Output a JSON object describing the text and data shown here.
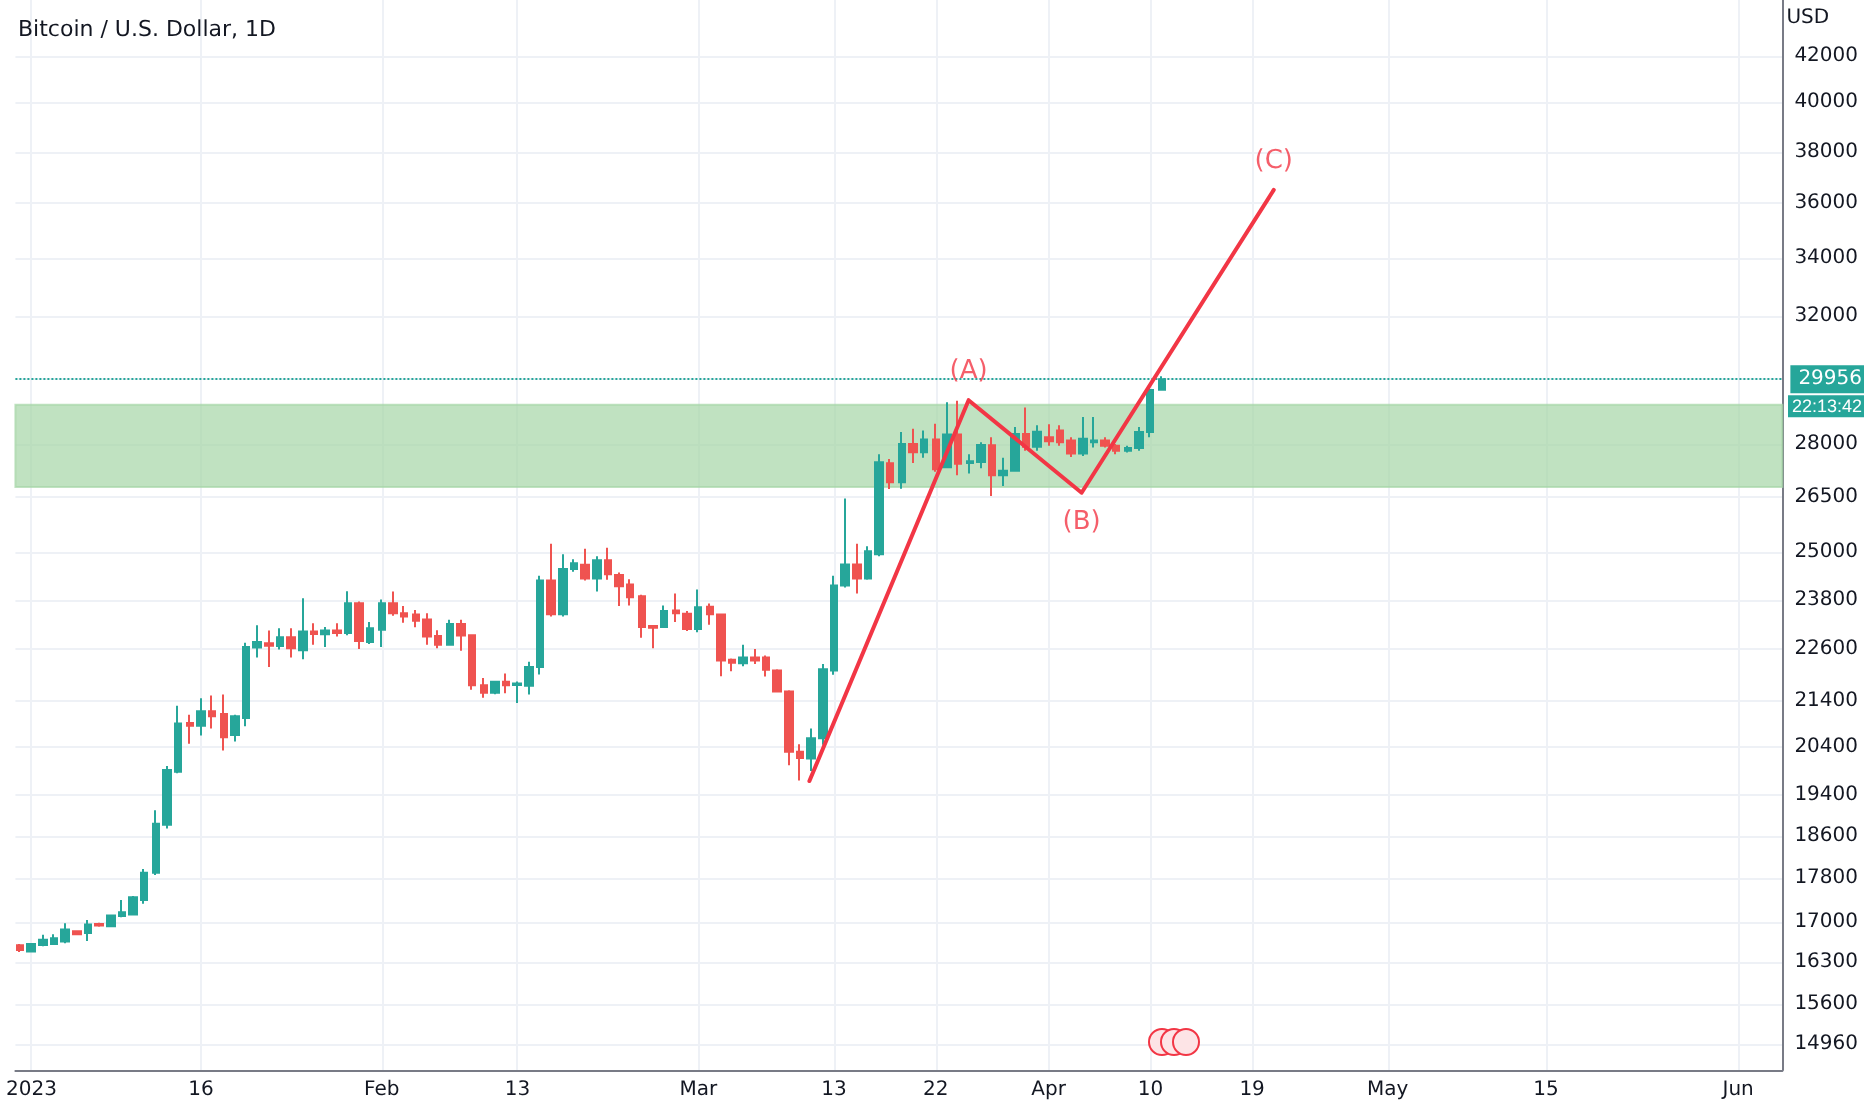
{
  "chart_data": {
    "type": "candlestick",
    "title": "Bitcoin / U.S. Dollar, 1D",
    "ylabel": "USD",
    "x": [
      "2022-12-31",
      "2023-01-01",
      "2023-01-02",
      "2023-01-03",
      "2023-01-04",
      "2023-01-05",
      "2023-01-06",
      "2023-01-07",
      "2023-01-08",
      "2023-01-09",
      "2023-01-10",
      "2023-01-11",
      "2023-01-12",
      "2023-01-13",
      "2023-01-14",
      "2023-01-15",
      "2023-01-16",
      "2023-01-17",
      "2023-01-18",
      "2023-01-19",
      "2023-01-20",
      "2023-01-21",
      "2023-01-22",
      "2023-01-23",
      "2023-01-24",
      "2023-01-25",
      "2023-01-26",
      "2023-01-27",
      "2023-01-28",
      "2023-01-29",
      "2023-01-30",
      "2023-01-31",
      "2023-02-01",
      "2023-02-02",
      "2023-02-03",
      "2023-02-04",
      "2023-02-05",
      "2023-02-06",
      "2023-02-07",
      "2023-02-08",
      "2023-02-09",
      "2023-02-10",
      "2023-02-11",
      "2023-02-12",
      "2023-02-13",
      "2023-02-14",
      "2023-02-15",
      "2023-02-16",
      "2023-02-17",
      "2023-02-18",
      "2023-02-19",
      "2023-02-20",
      "2023-02-21",
      "2023-02-22",
      "2023-02-23",
      "2023-02-24",
      "2023-02-25",
      "2023-02-26",
      "2023-02-27",
      "2023-02-28",
      "2023-03-01",
      "2023-03-02",
      "2023-03-03",
      "2023-03-04",
      "2023-03-05",
      "2023-03-06",
      "2023-03-07",
      "2023-03-08",
      "2023-03-09",
      "2023-03-10",
      "2023-03-11",
      "2023-03-12",
      "2023-03-13",
      "2023-03-14",
      "2023-03-15",
      "2023-03-16",
      "2023-03-17",
      "2023-03-18",
      "2023-03-19",
      "2023-03-20",
      "2023-03-21",
      "2023-03-22",
      "2023-03-23",
      "2023-03-24",
      "2023-03-25",
      "2023-03-26",
      "2023-03-27",
      "2023-03-28",
      "2023-03-29",
      "2023-03-30",
      "2023-03-31",
      "2023-04-01",
      "2023-04-02",
      "2023-04-03",
      "2023-04-04",
      "2023-04-05",
      "2023-04-06",
      "2023-04-07",
      "2023-04-08",
      "2023-04-09",
      "2023-04-10",
      "2023-04-11"
    ],
    "ohlc": [
      [
        16585,
        16610,
        16470,
        16505
      ],
      [
        16480,
        16620,
        16470,
        16610
      ],
      [
        16590,
        16770,
        16570,
        16680
      ],
      [
        16610,
        16780,
        16590,
        16710
      ],
      [
        16650,
        16970,
        16620,
        16860
      ],
      [
        16830,
        16850,
        16760,
        16780
      ],
      [
        16800,
        17030,
        16660,
        16950
      ],
      [
        16960,
        16980,
        16910,
        16930
      ],
      [
        16920,
        17130,
        16900,
        17110
      ],
      [
        17100,
        17390,
        17080,
        17170
      ],
      [
        17130,
        17460,
        17110,
        17440
      ],
      [
        17390,
        17960,
        17320,
        17890
      ],
      [
        17890,
        19100,
        17850,
        18830
      ],
      [
        18810,
        20000,
        18740,
        19920
      ],
      [
        19880,
        21300,
        19850,
        20910
      ],
      [
        20920,
        21100,
        20470,
        20860
      ],
      [
        20860,
        21470,
        20650,
        21180
      ],
      [
        21180,
        21530,
        20800,
        21070
      ],
      [
        21120,
        21550,
        20330,
        20610
      ],
      [
        20660,
        21100,
        20520,
        21070
      ],
      [
        21030,
        22750,
        20850,
        22650
      ],
      [
        22640,
        23170,
        22400,
        22770
      ],
      [
        22740,
        23040,
        22180,
        22680
      ],
      [
        22670,
        23100,
        22590,
        22880
      ],
      [
        22880,
        23100,
        22400,
        22620
      ],
      [
        22570,
        23830,
        22360,
        23020
      ],
      [
        23020,
        23220,
        22700,
        22960
      ],
      [
        22950,
        23130,
        22650,
        23040
      ],
      [
        23040,
        23220,
        22900,
        22980
      ],
      [
        22980,
        24010,
        22930,
        23710
      ],
      [
        23710,
        23750,
        22600,
        22790
      ],
      [
        22770,
        23250,
        22720,
        23100
      ],
      [
        23060,
        23800,
        22650,
        23710
      ],
      [
        23710,
        24000,
        23400,
        23460
      ],
      [
        23460,
        23640,
        23230,
        23380
      ],
      [
        23430,
        23540,
        23120,
        23280
      ],
      [
        23310,
        23460,
        22700,
        22900
      ],
      [
        22910,
        23050,
        22620,
        22700
      ],
      [
        22700,
        23300,
        22690,
        23200
      ],
      [
        23200,
        23300,
        22560,
        22920
      ],
      [
        22930,
        22950,
        21660,
        21760
      ],
      [
        21760,
        21930,
        21480,
        21590
      ],
      [
        21590,
        21850,
        21560,
        21840
      ],
      [
        21840,
        22030,
        21580,
        21760
      ],
      [
        21770,
        21850,
        21360,
        21800
      ],
      [
        21750,
        22300,
        21550,
        22180
      ],
      [
        22180,
        24400,
        22010,
        24280
      ],
      [
        24280,
        25230,
        23380,
        23440
      ],
      [
        23440,
        24950,
        23380,
        24570
      ],
      [
        24570,
        24820,
        24500,
        24720
      ],
      [
        24680,
        25100,
        24280,
        24330
      ],
      [
        24330,
        24900,
        24000,
        24800
      ],
      [
        24800,
        25120,
        24300,
        24440
      ],
      [
        24420,
        24480,
        23640,
        24130
      ],
      [
        24180,
        24310,
        23650,
        23860
      ],
      [
        23880,
        23920,
        22870,
        23130
      ],
      [
        23150,
        23160,
        22620,
        23110
      ],
      [
        23130,
        23650,
        23120,
        23520
      ],
      [
        23530,
        23950,
        23250,
        23460
      ],
      [
        23450,
        23520,
        23030,
        23080
      ],
      [
        23080,
        24050,
        23000,
        23610
      ],
      [
        23620,
        23700,
        23180,
        23440
      ],
      [
        23430,
        23450,
        21970,
        22330
      ],
      [
        22350,
        22380,
        22080,
        22280
      ],
      [
        22270,
        22700,
        22200,
        22400
      ],
      [
        22400,
        22600,
        22250,
        22330
      ],
      [
        22400,
        22450,
        21960,
        22120
      ],
      [
        22100,
        22130,
        21600,
        21620
      ],
      [
        21620,
        21650,
        20020,
        20300
      ],
      [
        20300,
        20460,
        19700,
        20170
      ],
      [
        20160,
        20800,
        19900,
        20590
      ],
      [
        20590,
        22250,
        20450,
        22130
      ],
      [
        22100,
        24400,
        22000,
        24150
      ],
      [
        24150,
        26450,
        24100,
        24690
      ],
      [
        24690,
        25230,
        23950,
        24330
      ],
      [
        24330,
        25160,
        24300,
        25030
      ],
      [
        24950,
        27700,
        24900,
        27470
      ],
      [
        27440,
        27560,
        26710,
        26900
      ],
      [
        26900,
        28350,
        26720,
        28000
      ],
      [
        28000,
        28450,
        27450,
        27760
      ],
      [
        27760,
        28400,
        27600,
        28130
      ],
      [
        28130,
        28600,
        27200,
        27270
      ],
      [
        27330,
        29250,
        27300,
        28280
      ],
      [
        28280,
        29290,
        27100,
        27430
      ],
      [
        27450,
        27700,
        27150,
        27500
      ],
      [
        27480,
        28050,
        27300,
        27970
      ],
      [
        27960,
        28200,
        26520,
        27100
      ],
      [
        27100,
        27600,
        26800,
        27230
      ],
      [
        27230,
        28500,
        27200,
        28290
      ],
      [
        28290,
        29090,
        27800,
        27920
      ],
      [
        27920,
        28550,
        27800,
        28360
      ],
      [
        28200,
        28580,
        27950,
        28080
      ],
      [
        28400,
        28550,
        27950,
        28050
      ],
      [
        28100,
        28200,
        27620,
        27720
      ],
      [
        27720,
        28800,
        27650,
        28150
      ],
      [
        28050,
        28800,
        27900,
        28100
      ],
      [
        28100,
        28200,
        27900,
        27950
      ],
      [
        27950,
        28000,
        27700,
        27800
      ],
      [
        27800,
        27950,
        27750,
        27880
      ],
      [
        27880,
        28500,
        27800,
        28350
      ],
      [
        28350,
        29700,
        28200,
        29620
      ],
      [
        29630,
        30050,
        29600,
        29956
      ]
    ],
    "colors": [
      "#ef5350",
      "#26a69a",
      "#26a69a",
      "#26a69a",
      "#26a69a",
      "#ef5350",
      "#26a69a",
      "#ef5350",
      "#26a69a",
      "#26a69a",
      "#26a69a",
      "#26a69a",
      "#26a69a",
      "#26a69a",
      "#26a69a",
      "#ef5350",
      "#26a69a",
      "#ef5350",
      "#ef5350",
      "#26a69a",
      "#26a69a",
      "#26a69a",
      "#ef5350",
      "#26a69a",
      "#ef5350",
      "#26a69a",
      "#ef5350",
      "#26a69a",
      "#ef5350",
      "#26a69a",
      "#ef5350",
      "#26a69a",
      "#26a69a",
      "#ef5350",
      "#ef5350",
      "#ef5350",
      "#ef5350",
      "#ef5350",
      "#26a69a",
      "#ef5350",
      "#ef5350",
      "#ef5350",
      "#26a69a",
      "#ef5350",
      "#26a69a",
      "#26a69a",
      "#26a69a",
      "#ef5350",
      "#26a69a",
      "#26a69a",
      "#ef5350",
      "#26a69a",
      "#ef5350",
      "#ef5350",
      "#ef5350",
      "#ef5350",
      "#ef5350",
      "#26a69a",
      "#ef5350",
      "#ef5350",
      "#26a69a",
      "#ef5350",
      "#ef5350",
      "#ef5350",
      "#26a69a",
      "#ef5350",
      "#ef5350",
      "#ef5350",
      "#ef5350",
      "#ef5350",
      "#26a69a",
      "#26a69a",
      "#26a69a",
      "#26a69a",
      "#ef5350",
      "#26a69a",
      "#26a69a",
      "#ef5350",
      "#26a69a",
      "#ef5350",
      "#26a69a",
      "#ef5350",
      "#26a69a",
      "#ef5350",
      "#26a69a",
      "#26a69a",
      "#ef5350",
      "#26a69a",
      "#26a69a",
      "#ef5350",
      "#26a69a",
      "#ef5350",
      "#ef5350",
      "#ef5350",
      "#26a69a",
      "#26a69a",
      "#ef5350",
      "#ef5350",
      "#26a69a",
      "#26a69a",
      "#26a69a",
      "#26a69a"
    ],
    "series": [
      {
        "type": "line",
        "color": "#f23645",
        "x": [
          "2023-03-10T20:00",
          "2023-03-24T22:00",
          "2023-04-03T22:00",
          "2023-04-20T22:00"
        ],
        "values": [
          19690,
          29310,
          26610,
          36510
        ]
      }
    ],
    "xlim": [
      "2022-12-30T14:00",
      "2023-06-04T22:00"
    ],
    "xticks": [
      {
        "value": "2023-01-01",
        "label": "2023"
      },
      {
        "value": "2023-01-16",
        "label": "16"
      },
      {
        "value": "2023-02-01",
        "label": "Feb"
      },
      {
        "value": "2023-02-13",
        "label": "13"
      },
      {
        "value": "2023-03-01",
        "label": "Mar"
      },
      {
        "value": "2023-03-13",
        "label": "13"
      },
      {
        "value": "2023-03-22",
        "label": "22"
      },
      {
        "value": "2023-04-01",
        "label": "Apr"
      },
      {
        "value": "2023-04-10",
        "label": "10"
      },
      {
        "value": "2023-04-19",
        "label": "19"
      },
      {
        "value": "2023-05-01",
        "label": "May"
      },
      {
        "value": "2023-05-15",
        "label": "15"
      },
      {
        "value": "2023-06-01",
        "label": "Jun"
      }
    ],
    "ylim": [
      14560,
      44520
    ],
    "yticks": [
      14960,
      15600,
      16300,
      17000,
      17800,
      18600,
      19400,
      20400,
      21400,
      22600,
      23800,
      25000,
      26500,
      28000,
      {
        "value": 30000,
        "label": null
      },
      32000,
      34000,
      36000,
      38000,
      40000,
      42000
    ],
    "log": "y",
    "grid": true,
    "ref_lines": [
      {
        "axis": "y",
        "value": 29956,
        "label": "29956",
        "color": "#26a69a",
        "line_style": "dotted"
      }
    ],
    "bands": [
      {
        "axis": "y",
        "from": 26770,
        "to": 29170,
        "color": "#a5d6a7"
      }
    ],
    "annotations": [
      {
        "text": "(A)",
        "x": "2023-03-24T22:00",
        "y": 29310
      },
      {
        "text": "(B)",
        "x": "2023-04-03T22:00",
        "y": 26610
      },
      {
        "text": "(C)",
        "x": "2023-04-20T22:00",
        "y": 36510
      },
      "22:13:42"
    ]
  }
}
